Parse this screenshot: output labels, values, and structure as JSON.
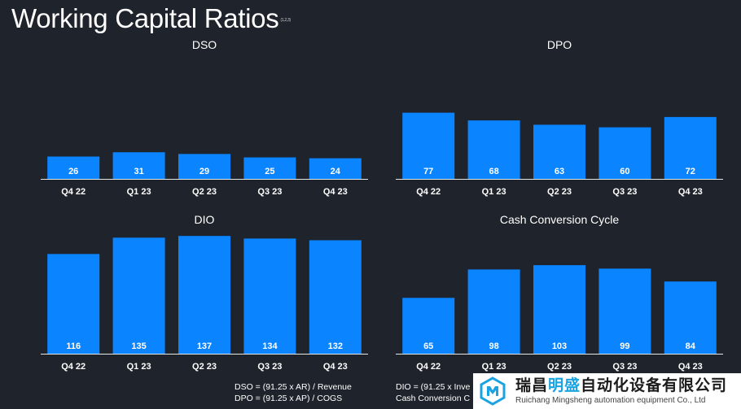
{
  "title": "Working Capital Ratios",
  "title_superscript": "(1,2,3)",
  "colors": {
    "bar": "#0a84ff",
    "background": "#1f232b",
    "text": "#ffffff",
    "watermark_accent": "#1aa3e0"
  },
  "chart_data": [
    {
      "type": "bar",
      "title": "DSO",
      "categories": [
        "Q4 22",
        "Q1 23",
        "Q2 23",
        "Q3 23",
        "Q4 23"
      ],
      "values": [
        26,
        31,
        29,
        25,
        24
      ],
      "ylim": [
        0,
        140
      ],
      "grid": false,
      "legend": "none"
    },
    {
      "type": "bar",
      "title": "DPO",
      "categories": [
        "Q4 22",
        "Q1 23",
        "Q2 23",
        "Q3 23",
        "Q4 23"
      ],
      "values": [
        77,
        68,
        63,
        60,
        72
      ],
      "ylim": [
        0,
        140
      ],
      "grid": false,
      "legend": "none"
    },
    {
      "type": "bar",
      "title": "DIO",
      "categories": [
        "Q4 22",
        "Q1 23",
        "Q2 23",
        "Q3 23",
        "Q4 23"
      ],
      "values": [
        116,
        135,
        137,
        134,
        132
      ],
      "ylim": [
        0,
        140
      ],
      "grid": false,
      "legend": "none"
    },
    {
      "type": "bar",
      "title": "Cash Conversion Cycle",
      "categories": [
        "Q4 22",
        "Q1 23",
        "Q2 23",
        "Q3 23",
        "Q4 23"
      ],
      "values": [
        65,
        98,
        103,
        99,
        84
      ],
      "ylim": [
        0,
        140
      ],
      "grid": false,
      "legend": "none"
    }
  ],
  "footnotes": {
    "left_line1": "DSO = (91.25 x AR) / Revenue",
    "left_line2": "DPO = (91.25 x AP) / COGS",
    "right_line1": "DIO = (91.25 x Inve",
    "right_line2": "Cash Conversion C"
  },
  "watermark": {
    "logo_icon": "hexagon-logo-icon",
    "cn_part1": "瑞昌",
    "cn_highlight": "明盛",
    "cn_part2": "自动化设备有限公司",
    "en": "Ruichang Mingsheng automation equipment Co., Ltd"
  }
}
